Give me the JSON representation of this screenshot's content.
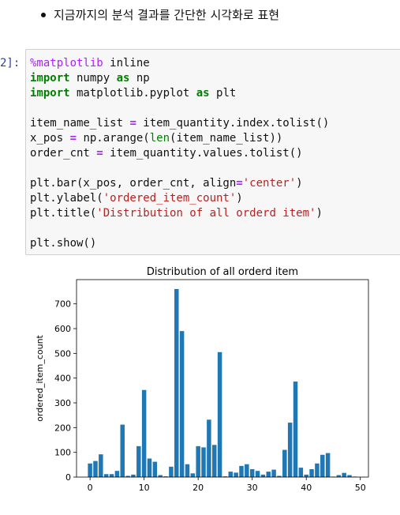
{
  "markdown": {
    "bullet_text": "지금까지의 분석 결과를 간단한 시각화로 표현"
  },
  "cell": {
    "prompt": "2]:",
    "code_lines": [
      [
        {
          "t": "%matplotlib",
          "c": "magic"
        },
        {
          "t": " inline",
          "c": ""
        }
      ],
      [
        {
          "t": "import",
          "c": "kw"
        },
        {
          "t": " numpy ",
          "c": ""
        },
        {
          "t": "as",
          "c": "kw"
        },
        {
          "t": " np",
          "c": ""
        }
      ],
      [
        {
          "t": "import",
          "c": "kw"
        },
        {
          "t": " matplotlib.pyplot ",
          "c": ""
        },
        {
          "t": "as",
          "c": "kw"
        },
        {
          "t": " plt",
          "c": ""
        }
      ],
      [
        {
          "t": "",
          "c": ""
        }
      ],
      [
        {
          "t": "item_name_list ",
          "c": ""
        },
        {
          "t": "=",
          "c": "op"
        },
        {
          "t": " item_quantity.index.tolist()",
          "c": ""
        }
      ],
      [
        {
          "t": "x_pos ",
          "c": ""
        },
        {
          "t": "=",
          "c": "op"
        },
        {
          "t": " np.arange(",
          "c": ""
        },
        {
          "t": "len",
          "c": "bi"
        },
        {
          "t": "(item_name_list))",
          "c": ""
        }
      ],
      [
        {
          "t": "order_cnt ",
          "c": ""
        },
        {
          "t": "=",
          "c": "op"
        },
        {
          "t": " item_quantity.values.tolist()",
          "c": ""
        }
      ],
      [
        {
          "t": "",
          "c": ""
        }
      ],
      [
        {
          "t": "plt.bar(x_pos, order_cnt, align",
          "c": ""
        },
        {
          "t": "=",
          "c": "op"
        },
        {
          "t": "'center'",
          "c": "str"
        },
        {
          "t": ")",
          "c": ""
        }
      ],
      [
        {
          "t": "plt.ylabel(",
          "c": ""
        },
        {
          "t": "'ordered_item_count'",
          "c": "str"
        },
        {
          "t": ")",
          "c": ""
        }
      ],
      [
        {
          "t": "plt.title(",
          "c": ""
        },
        {
          "t": "'Distribution of all orderd item'",
          "c": "str"
        },
        {
          "t": ")",
          "c": ""
        }
      ],
      [
        {
          "t": "",
          "c": ""
        }
      ],
      [
        {
          "t": "plt.show()",
          "c": ""
        }
      ]
    ]
  },
  "chart_data": {
    "type": "bar",
    "title": "Distribution of all orderd item",
    "xlabel": "",
    "ylabel": "ordered_item_count",
    "x": [
      0,
      1,
      2,
      3,
      4,
      5,
      6,
      7,
      8,
      9,
      10,
      11,
      12,
      13,
      14,
      15,
      16,
      17,
      18,
      19,
      20,
      21,
      22,
      23,
      24,
      25,
      26,
      27,
      28,
      29,
      30,
      31,
      32,
      33,
      34,
      35,
      36,
      37,
      38,
      39,
      40,
      41,
      42,
      43,
      44,
      45,
      46,
      47,
      48,
      49
    ],
    "values": [
      55,
      65,
      92,
      12,
      12,
      25,
      212,
      5,
      10,
      125,
      352,
      75,
      62,
      8,
      3,
      42,
      760,
      590,
      52,
      15,
      125,
      120,
      232,
      130,
      505,
      3,
      22,
      18,
      45,
      52,
      32,
      25,
      10,
      22,
      30,
      5,
      110,
      220,
      386,
      38,
      10,
      32,
      55,
      90,
      97,
      2,
      8,
      17,
      8,
      2
    ],
    "xticks": [
      0,
      10,
      20,
      30,
      40,
      50
    ],
    "yticks": [
      0,
      100,
      200,
      300,
      400,
      500,
      600,
      700
    ],
    "xlim": [
      -2.5,
      51.5
    ],
    "ylim": [
      0,
      798
    ],
    "bar_color": "#1f77b4"
  }
}
